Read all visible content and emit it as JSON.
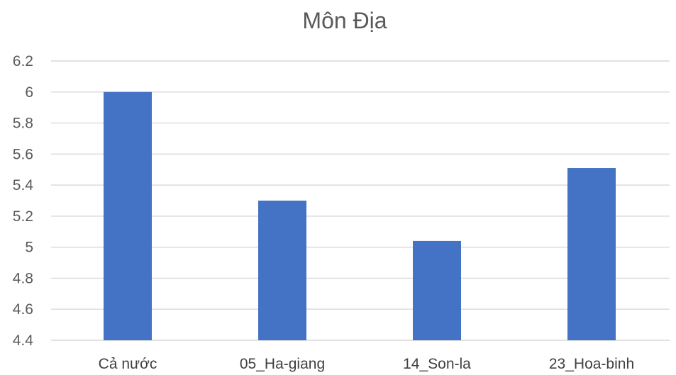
{
  "chart_data": {
    "type": "bar",
    "title": "Môn Địa",
    "categories": [
      "Cả nước",
      "05_Ha-giang",
      "14_Son-la",
      "23_Hoa-binh"
    ],
    "series": [
      {
        "values": [
          6.0,
          5.3,
          5.04,
          5.51
        ],
        "color": "#4472c4"
      }
    ],
    "ylim": [
      4.4,
      6.2
    ],
    "yticks": [
      "4.4",
      "4.6",
      "4.8",
      "5",
      "5.2",
      "5.4",
      "5.6",
      "5.8",
      "6",
      "6.2"
    ],
    "grid": true,
    "legend": "none",
    "xlabel": "",
    "ylabel": ""
  }
}
